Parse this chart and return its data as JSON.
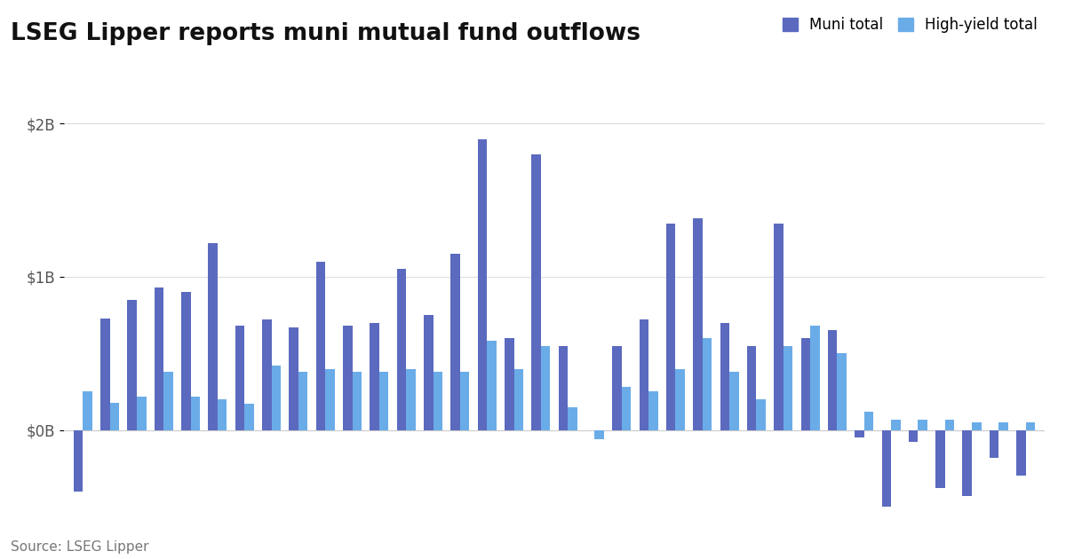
{
  "title": "LSEG Lipper reports muni mutual fund outflows",
  "source": "Source: LSEG Lipper",
  "legend_labels": [
    "Muni total",
    "High-yield total"
  ],
  "muni_color": "#5b6abf",
  "hy_color": "#6aace8",
  "background_color": "#ffffff",
  "ylim": [
    -0.55,
    2.15
  ],
  "yticks": [
    0,
    1,
    2
  ],
  "ytick_labels": [
    "$0B",
    "$1B",
    "$2B"
  ],
  "muni_values": [
    -0.4,
    0.73,
    0.85,
    0.93,
    0.9,
    1.22,
    0.68,
    0.72,
    0.67,
    1.1,
    0.68,
    0.7,
    1.05,
    0.75,
    1.15,
    1.9,
    0.6,
    1.8,
    0.55,
    0.0,
    0.55,
    0.72,
    1.35,
    1.38,
    0.7,
    0.55,
    1.35,
    0.6,
    0.65,
    -0.05,
    -0.5,
    -0.08,
    -0.38,
    -0.43,
    -0.18,
    -0.3
  ],
  "hy_values": [
    0.25,
    0.18,
    0.22,
    0.38,
    0.22,
    0.2,
    0.17,
    0.42,
    0.38,
    0.4,
    0.38,
    0.38,
    0.4,
    0.38,
    0.38,
    0.58,
    0.4,
    0.55,
    0.15,
    -0.06,
    0.28,
    0.25,
    0.4,
    0.6,
    0.38,
    0.2,
    0.55,
    0.68,
    0.5,
    0.12,
    0.07,
    0.07,
    0.07,
    0.05,
    0.05,
    0.05
  ],
  "bar_width": 0.35,
  "title_fontsize": 19,
  "legend_fontsize": 12,
  "tick_fontsize": 12,
  "source_fontsize": 11
}
